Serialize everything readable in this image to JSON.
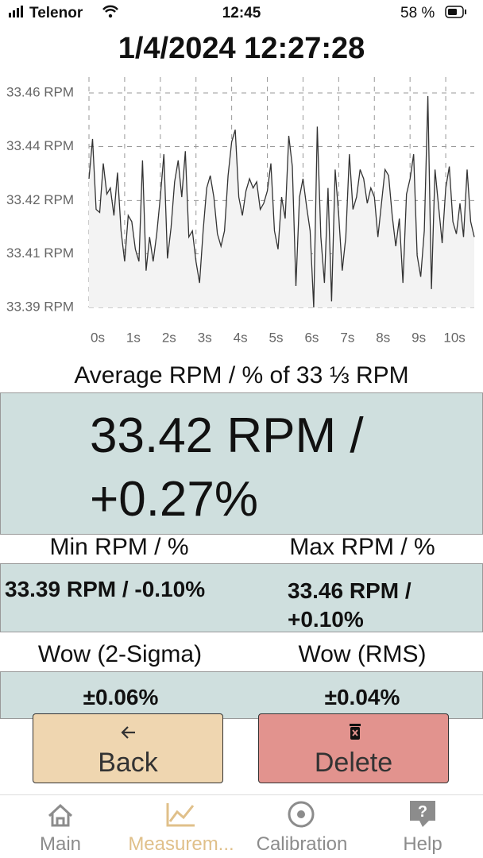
{
  "status_bar": {
    "carrier": "Telenor",
    "time": "12:45",
    "battery": "58 %"
  },
  "header": {
    "title": "1/4/2024 12:27:28"
  },
  "chart_data": {
    "type": "line",
    "color": "#333333",
    "fill_color": "#f3f3f3",
    "grid": true,
    "x": [
      0,
      0.1,
      0.2,
      0.3,
      0.4,
      0.5,
      0.6,
      0.7,
      0.8,
      0.9,
      1,
      1.1,
      1.2,
      1.3,
      1.4,
      1.5,
      1.6,
      1.7,
      1.8,
      1.9,
      2,
      2.1,
      2.2,
      2.3,
      2.4,
      2.5,
      2.6,
      2.7,
      2.8,
      2.9,
      3,
      3.1,
      3.2,
      3.3,
      3.4,
      3.5,
      3.6,
      3.7,
      3.8,
      3.9,
      4,
      4.1,
      4.2,
      4.3,
      4.4,
      4.5,
      4.6,
      4.7,
      4.8,
      4.9,
      5,
      5.1,
      5.2,
      5.3,
      5.4,
      5.5,
      5.6,
      5.7,
      5.8,
      5.9,
      6,
      6.1,
      6.2,
      6.3,
      6.4,
      6.5,
      6.6,
      6.7,
      6.8,
      6.9,
      7,
      7.1,
      7.2,
      7.3,
      7.4,
      7.5,
      7.6,
      7.7,
      7.8,
      7.9,
      8,
      8.1,
      8.2,
      8.3,
      8.4,
      8.5,
      8.6,
      8.7,
      8.8,
      8.9,
      9,
      9.1,
      9.2,
      9.3,
      9.4,
      9.5,
      9.6,
      9.7,
      9.8,
      9.9,
      10,
      10.1,
      10.2,
      10.3,
      10.4,
      10.5,
      10.6,
      10.7,
      10.8
    ],
    "values": [
      33.432,
      33.445,
      33.422,
      33.421,
      33.437,
      33.427,
      33.429,
      33.42,
      33.434,
      33.415,
      33.405,
      33.42,
      33.418,
      33.409,
      33.405,
      33.438,
      33.402,
      33.413,
      33.405,
      33.414,
      33.426,
      33.44,
      33.406,
      33.416,
      33.431,
      33.438,
      33.426,
      33.441,
      33.413,
      33.415,
      33.405,
      33.398,
      33.415,
      33.429,
      33.433,
      33.426,
      33.414,
      33.41,
      33.415,
      33.433,
      33.444,
      33.448,
      33.426,
      33.42,
      33.428,
      33.432,
      33.429,
      33.431,
      33.422,
      33.424,
      33.428,
      33.437,
      33.415,
      33.409,
      33.426,
      33.419,
      33.446,
      33.436,
      33.397,
      33.426,
      33.432,
      33.423,
      33.415,
      33.39,
      33.449,
      33.413,
      33.398,
      33.429,
      33.392,
      33.435,
      33.42,
      33.402,
      33.413,
      33.44,
      33.422,
      33.426,
      33.435,
      33.432,
      33.424,
      33.429,
      33.426,
      33.413,
      33.424,
      33.435,
      33.433,
      33.42,
      33.41,
      33.419,
      33.398,
      33.427,
      33.432,
      33.44,
      33.407,
      33.4,
      33.415,
      33.459,
      33.396,
      33.435,
      33.423,
      33.411,
      33.429,
      33.436,
      33.418,
      33.414,
      33.424,
      33.413,
      33.435,
      33.418,
      33.413
    ],
    "xlim": [
      0,
      10.8
    ],
    "ylim": [
      33.39,
      33.46
    ],
    "xticks": [
      {
        "value": 0,
        "label": "0s"
      },
      {
        "value": 1,
        "label": "1s"
      },
      {
        "value": 2,
        "label": "2s"
      },
      {
        "value": 3,
        "label": "3s"
      },
      {
        "value": 4,
        "label": "4s"
      },
      {
        "value": 5,
        "label": "5s"
      },
      {
        "value": 6,
        "label": "6s"
      },
      {
        "value": 7,
        "label": "7s"
      },
      {
        "value": 8,
        "label": "8s"
      },
      {
        "value": 9,
        "label": "9s"
      },
      {
        "value": 10,
        "label": "10s"
      }
    ],
    "yticks": [
      {
        "value": 33.46,
        "label": "33.46 RPM"
      },
      {
        "value": 33.4425,
        "label": "33.44 RPM"
      },
      {
        "value": 33.4249,
        "label": "33.42 RPM"
      },
      {
        "value": 33.4075,
        "label": "33.41 RPM"
      },
      {
        "value": 33.39,
        "label": "33.39 RPM"
      }
    ]
  },
  "average": {
    "label": "Average RPM / % of 33 ⅓ RPM",
    "value": "33.42 RPM / +0.27%"
  },
  "stats": {
    "min": {
      "label": "Min RPM / %",
      "value": "33.39 RPM / -0.10%"
    },
    "max": {
      "label": "Max RPM / %",
      "value": "33.46 RPM / +0.10%"
    },
    "wow_2sigma": {
      "label": "Wow (2-Sigma)",
      "value": "±0.06%"
    },
    "wow_rms": {
      "label": "Wow (RMS)",
      "value": "±0.04%"
    }
  },
  "buttons": {
    "back": "Back",
    "delete": "Delete"
  },
  "tabs": [
    {
      "label": "Main",
      "active": false
    },
    {
      "label": "Measurem...",
      "active": true
    },
    {
      "label": "Calibration",
      "active": false
    },
    {
      "label": "Help",
      "active": false
    }
  ]
}
